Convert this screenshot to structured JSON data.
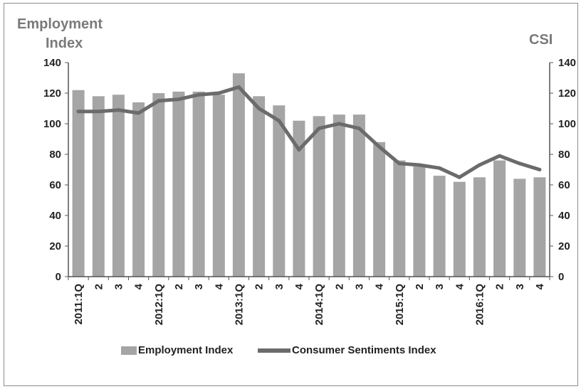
{
  "chart_data": {
    "type": "bar+line",
    "y_left_title_lines": [
      "Employment",
      "Index"
    ],
    "y_right_title": "CSI",
    "categories": [
      "2011:1Q",
      "2",
      "3",
      "4",
      "2012:1Q",
      "2",
      "3",
      "4",
      "2013:1Q",
      "2",
      "3",
      "4",
      "2014:1Q",
      "2",
      "3",
      "4",
      "2015:1Q",
      "2",
      "3",
      "4",
      "2016:1Q",
      "2",
      "3",
      "4"
    ],
    "series": [
      {
        "name": "Employment Index",
        "kind": "bar",
        "axis": "left",
        "color": "#a5a5a5",
        "values": [
          122,
          118,
          119,
          114,
          120,
          121,
          121,
          119,
          133,
          118,
          112,
          102,
          105,
          106,
          106,
          88,
          76,
          72,
          66,
          62,
          65,
          76,
          64,
          65
        ]
      },
      {
        "name": "Consumer Sentiments Index",
        "kind": "line",
        "axis": "right",
        "color": "#6b6b6b",
        "values": [
          108,
          108,
          109,
          107,
          115,
          116,
          119,
          120,
          124,
          110,
          102,
          83,
          97,
          100,
          97,
          85,
          74,
          73,
          71,
          65,
          73,
          79,
          74,
          70
        ]
      }
    ],
    "ylim": [
      0,
      140
    ],
    "y_ticks": [
      0,
      20,
      40,
      60,
      80,
      100,
      120,
      140
    ],
    "y_right_ticks": [
      "0",
      "20",
      "40",
      "60",
      "80",
      "100",
      "120",
      "140"
    ],
    "legend_position": "bottom",
    "grid": false
  }
}
